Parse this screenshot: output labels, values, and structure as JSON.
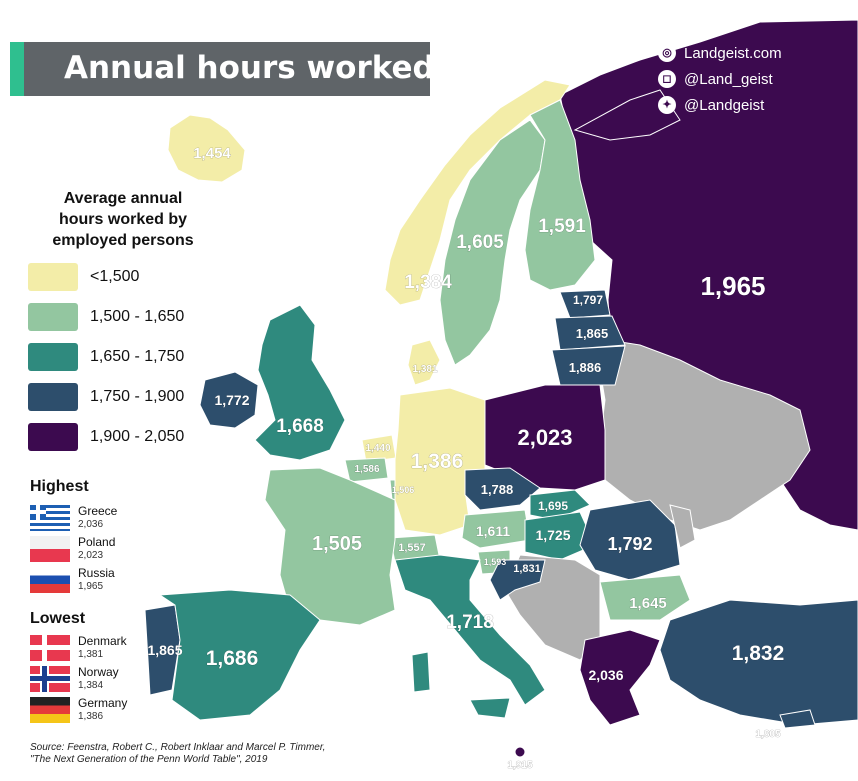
{
  "title": "Annual hours worked",
  "social": {
    "website": "Landgeist.com",
    "instagram": "@Land_geist",
    "twitter": "@Landgeist"
  },
  "icons": [
    "globe-icon",
    "instagram-icon",
    "twitter-icon"
  ],
  "legend": {
    "title_lines": [
      "Average annual",
      "hours worked by",
      "employed persons"
    ],
    "bins": [
      {
        "label": "<1,500",
        "color": "#f3eda8"
      },
      {
        "label": "1,500 - 1,650",
        "color": "#93c6a0"
      },
      {
        "label": "1,650 - 1,750",
        "color": "#2f8a7e"
      },
      {
        "label": "1,750 - 1,900",
        "color": "#2d4e6c"
      },
      {
        "label": "1,900 - 2,050",
        "color": "#3c0a4f"
      }
    ]
  },
  "highest": {
    "heading": "Highest",
    "items": [
      {
        "country": "Greece",
        "value": "2,036"
      },
      {
        "country": "Poland",
        "value": "2,023"
      },
      {
        "country": "Russia",
        "value": "1,965"
      }
    ]
  },
  "lowest": {
    "heading": "Lowest",
    "items": [
      {
        "country": "Denmark",
        "value": "1,381"
      },
      {
        "country": "Norway",
        "value": "1,384"
      },
      {
        "country": "Germany",
        "value": "1,386"
      }
    ]
  },
  "source": {
    "line1": "Source: Feenstra, Robert C., Robert Inklaar and Marcel P. Timmer,",
    "line2": "\"The Next Generation of the Penn World Table\", 2019"
  },
  "colors": {
    "no_data": "#b0b0b0",
    "sea": "#ffffff",
    "title_accent": "#2fbf8f",
    "title_bg": "#5f6468"
  },
  "regions": [
    {
      "name": "iceland",
      "value": "1,454",
      "bin": 0
    },
    {
      "name": "norway",
      "value": "1,384",
      "bin": 0
    },
    {
      "name": "sweden",
      "value": "1,605",
      "bin": 1
    },
    {
      "name": "finland",
      "value": "1,591",
      "bin": 1
    },
    {
      "name": "russia",
      "value": "1,965",
      "bin": 4
    },
    {
      "name": "estonia",
      "value": "1,797",
      "bin": 3
    },
    {
      "name": "latvia",
      "value": "1,865",
      "bin": 3
    },
    {
      "name": "lithuania",
      "value": "1,886",
      "bin": 3
    },
    {
      "name": "denmark",
      "value": "1,381",
      "bin": 0
    },
    {
      "name": "ireland",
      "value": "1,772",
      "bin": 3
    },
    {
      "name": "united-kingdom",
      "value": "1,668",
      "bin": 2
    },
    {
      "name": "netherlands",
      "value": "1,440",
      "bin": 0
    },
    {
      "name": "belgium",
      "value": "1,586",
      "bin": 1
    },
    {
      "name": "luxembourg",
      "value": "1,506",
      "bin": 1
    },
    {
      "name": "germany",
      "value": "1,386",
      "bin": 0
    },
    {
      "name": "poland",
      "value": "2,023",
      "bin": 4
    },
    {
      "name": "czechia",
      "value": "1,788",
      "bin": 3
    },
    {
      "name": "slovakia",
      "value": "1,695",
      "bin": 2
    },
    {
      "name": "austria",
      "value": "1,611",
      "bin": 1
    },
    {
      "name": "hungary",
      "value": "1,725",
      "bin": 2
    },
    {
      "name": "romania",
      "value": "1,792",
      "bin": 3
    },
    {
      "name": "slovenia",
      "value": "1,593",
      "bin": 1
    },
    {
      "name": "croatia",
      "value": "1,831",
      "bin": 3
    },
    {
      "name": "switzerland",
      "value": "1,557",
      "bin": 1
    },
    {
      "name": "france",
      "value": "1,505",
      "bin": 1
    },
    {
      "name": "bulgaria",
      "value": "1,645",
      "bin": 1
    },
    {
      "name": "italy",
      "value": "1,718",
      "bin": 2
    },
    {
      "name": "portugal",
      "value": "1,865",
      "bin": 3
    },
    {
      "name": "spain",
      "value": "1,686",
      "bin": 2
    },
    {
      "name": "greece",
      "value": "2,036",
      "bin": 4
    },
    {
      "name": "turkey",
      "value": "1,832",
      "bin": 3
    },
    {
      "name": "cyprus",
      "value": "1,805",
      "bin": 3
    },
    {
      "name": "malta",
      "value": "1,915",
      "bin": 4
    }
  ]
}
